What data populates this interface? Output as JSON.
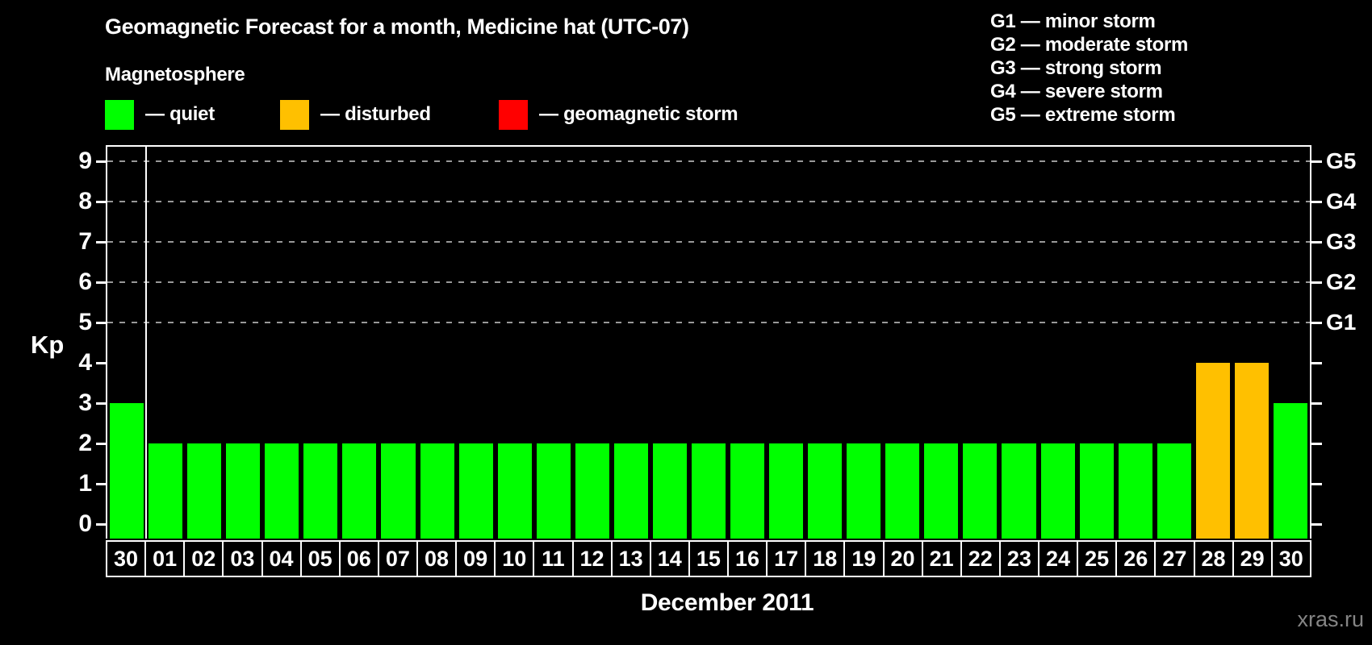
{
  "header": {
    "title": "Geomagnetic Forecast for a month, Medicine hat (UTC-07)",
    "magnetosphere_label": "Magnetosphere",
    "legend": [
      {
        "label": "— quiet",
        "state": "quiet"
      },
      {
        "label": "— disturbed",
        "state": "disturbed"
      },
      {
        "label": "— geomagnetic storm",
        "state": "storm"
      }
    ]
  },
  "g_legend": [
    "G1 — minor storm",
    "G2 — moderate storm",
    "G3 — strong storm",
    "G4 — severe storm",
    "G5 — extreme storm"
  ],
  "watermark": "xras.ru",
  "chart_data": {
    "type": "bar",
    "title": "Geomagnetic Forecast for a month, Medicine hat (UTC-07)",
    "xlabel": "December 2011",
    "ylabel": "Kp",
    "ylim": [
      0,
      9.4
    ],
    "grid": "dashed horizontal lines at Kp 5-9 only",
    "categories": [
      "30",
      "01",
      "02",
      "03",
      "04",
      "05",
      "06",
      "07",
      "08",
      "09",
      "10",
      "11",
      "12",
      "13",
      "14",
      "15",
      "16",
      "17",
      "18",
      "19",
      "20",
      "21",
      "22",
      "23",
      "24",
      "25",
      "26",
      "27",
      "28",
      "29",
      "30"
    ],
    "values": [
      3,
      2,
      2,
      2,
      2,
      2,
      2,
      2,
      2,
      2,
      2,
      2,
      2,
      2,
      2,
      2,
      2,
      2,
      2,
      2,
      2,
      2,
      2,
      2,
      2,
      2,
      2,
      2,
      4,
      4,
      3
    ],
    "states": [
      "quiet",
      "quiet",
      "quiet",
      "quiet",
      "quiet",
      "quiet",
      "quiet",
      "quiet",
      "quiet",
      "quiet",
      "quiet",
      "quiet",
      "quiet",
      "quiet",
      "quiet",
      "quiet",
      "quiet",
      "quiet",
      "quiet",
      "quiet",
      "quiet",
      "quiet",
      "quiet",
      "quiet",
      "quiet",
      "quiet",
      "quiet",
      "quiet",
      "disturbed",
      "disturbed",
      "quiet"
    ],
    "y_ticks": [
      0,
      1,
      2,
      3,
      4,
      5,
      6,
      7,
      8,
      9
    ],
    "grid_values": [
      5,
      6,
      7,
      8,
      9
    ],
    "right_axis": {
      "labels": [
        "G1",
        "G2",
        "G3",
        "G4",
        "G5"
      ],
      "at_values": [
        5,
        6,
        7,
        8,
        9
      ]
    },
    "separator_after_index": 0,
    "bar_colors": {
      "quiet": "#00ff00",
      "disturbed": "#ffc000",
      "storm": "#ff0000"
    },
    "background_color": "#000000",
    "text_color": "#ffffff",
    "grid_color": "#999999"
  }
}
